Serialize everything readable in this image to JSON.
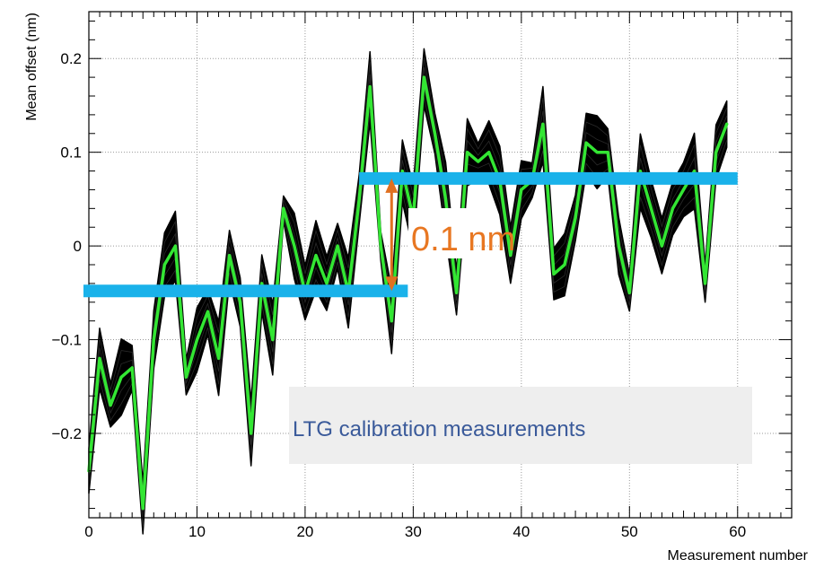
{
  "chart_data": {
    "type": "line",
    "title": "",
    "xlabel": "Measurement number",
    "ylabel": "Mean offset (nm)",
    "xlim": [
      0,
      65
    ],
    "ylim": [
      -0.29,
      0.25
    ],
    "x_ticks": [
      0,
      10,
      20,
      30,
      40,
      50,
      60
    ],
    "y_ticks": [
      -0.2,
      -0.1,
      0,
      0.1,
      0.2
    ],
    "y_tick_labels": [
      "−0.2",
      "−0.1",
      "0",
      "0.1",
      "0.2"
    ],
    "grid": true,
    "series": [
      {
        "x": [
          0,
          1,
          2,
          3,
          4,
          5,
          6,
          7,
          8,
          9,
          10,
          11,
          12,
          13,
          14,
          15,
          16,
          17,
          18,
          19,
          20,
          21,
          22,
          23,
          24,
          25,
          26,
          27,
          28,
          29,
          30,
          31,
          32,
          33,
          34,
          35,
          36,
          37,
          38,
          39,
          40,
          41,
          42,
          43,
          44,
          45,
          46,
          47,
          48,
          49,
          50,
          51,
          52,
          53,
          54,
          55,
          56,
          57,
          58,
          59
        ],
        "y": [
          -0.24,
          -0.12,
          -0.17,
          -0.14,
          -0.13,
          -0.28,
          -0.1,
          -0.02,
          0.0,
          -0.14,
          -0.1,
          -0.07,
          -0.12,
          -0.01,
          -0.06,
          -0.2,
          -0.04,
          -0.1,
          0.04,
          0.0,
          -0.05,
          -0.01,
          -0.04,
          0.0,
          -0.05,
          0.05,
          0.17,
          0.0,
          -0.08,
          0.08,
          0.03,
          0.18,
          0.12,
          0.05,
          -0.05,
          0.1,
          0.09,
          0.1,
          0.07,
          -0.01,
          0.06,
          0.07,
          0.13,
          -0.03,
          -0.02,
          0.03,
          0.11,
          0.1,
          0.1,
          0.0,
          -0.05,
          0.08,
          0.04,
          0.0,
          0.04,
          0.06,
          0.08,
          -0.04,
          0.1,
          0.13
        ]
      }
    ],
    "colors": {
      "envelope": "#000000",
      "mean_line": "#33e633",
      "level_bars": "#1ab2ea",
      "gap_arrow": "#e07020",
      "gap_text": "#e87722",
      "note_text": "#3a5a9a",
      "note_box": "#eeeeee"
    },
    "level_lines": [
      {
        "x_range": [
          -0.5,
          29.5
        ],
        "y": -0.048
      },
      {
        "x_range": [
          25,
          60
        ],
        "y": 0.072
      }
    ],
    "annotations": {
      "gap_label": "0.1 nm",
      "gap_arrow": {
        "x": 28,
        "y_from": -0.048,
        "y_to": 0.072
      },
      "note_label": "LTG calibration measurements"
    }
  }
}
